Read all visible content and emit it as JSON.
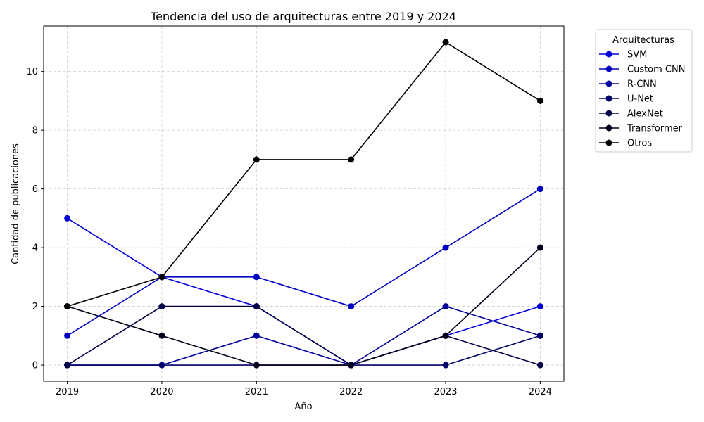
{
  "chart_data": {
    "type": "line",
    "title": "Tendencia del uso de arquitecturas entre 2019 y 2024",
    "xlabel": "Año",
    "ylabel": "Cantidad de publicaciones",
    "x": [
      2019,
      2020,
      2021,
      2022,
      2023,
      2024
    ],
    "ylim": [
      -0.55,
      11.55
    ],
    "yticks": [
      0,
      2,
      4,
      6,
      8,
      10
    ],
    "grid": true,
    "legend_title": "Arquitecturas",
    "legend_position": "outside-top-right",
    "series": [
      {
        "name": "SVM",
        "color": "#0000dd",
        "values": [
          5,
          3,
          2,
          0,
          1,
          2
        ]
      },
      {
        "name": "Custom CNN",
        "color": "#0000c0",
        "values": [
          1,
          3,
          3,
          2,
          4,
          6
        ]
      },
      {
        "name": "R-CNN",
        "color": "#00009a",
        "values": [
          0,
          0,
          1,
          0,
          2,
          1
        ]
      },
      {
        "name": "U-Net",
        "color": "#00006a",
        "values": [
          0,
          0,
          0,
          0,
          0,
          1
        ]
      },
      {
        "name": "AlexNet",
        "color": "#000046",
        "values": [
          0,
          2,
          2,
          0,
          1,
          0
        ]
      },
      {
        "name": "Transformer",
        "color": "#00001a",
        "values": [
          2,
          1,
          0,
          0,
          1,
          4
        ]
      },
      {
        "name": "Otros",
        "color": "#000000",
        "values": [
          2,
          3,
          7,
          7,
          11,
          9
        ]
      }
    ]
  }
}
